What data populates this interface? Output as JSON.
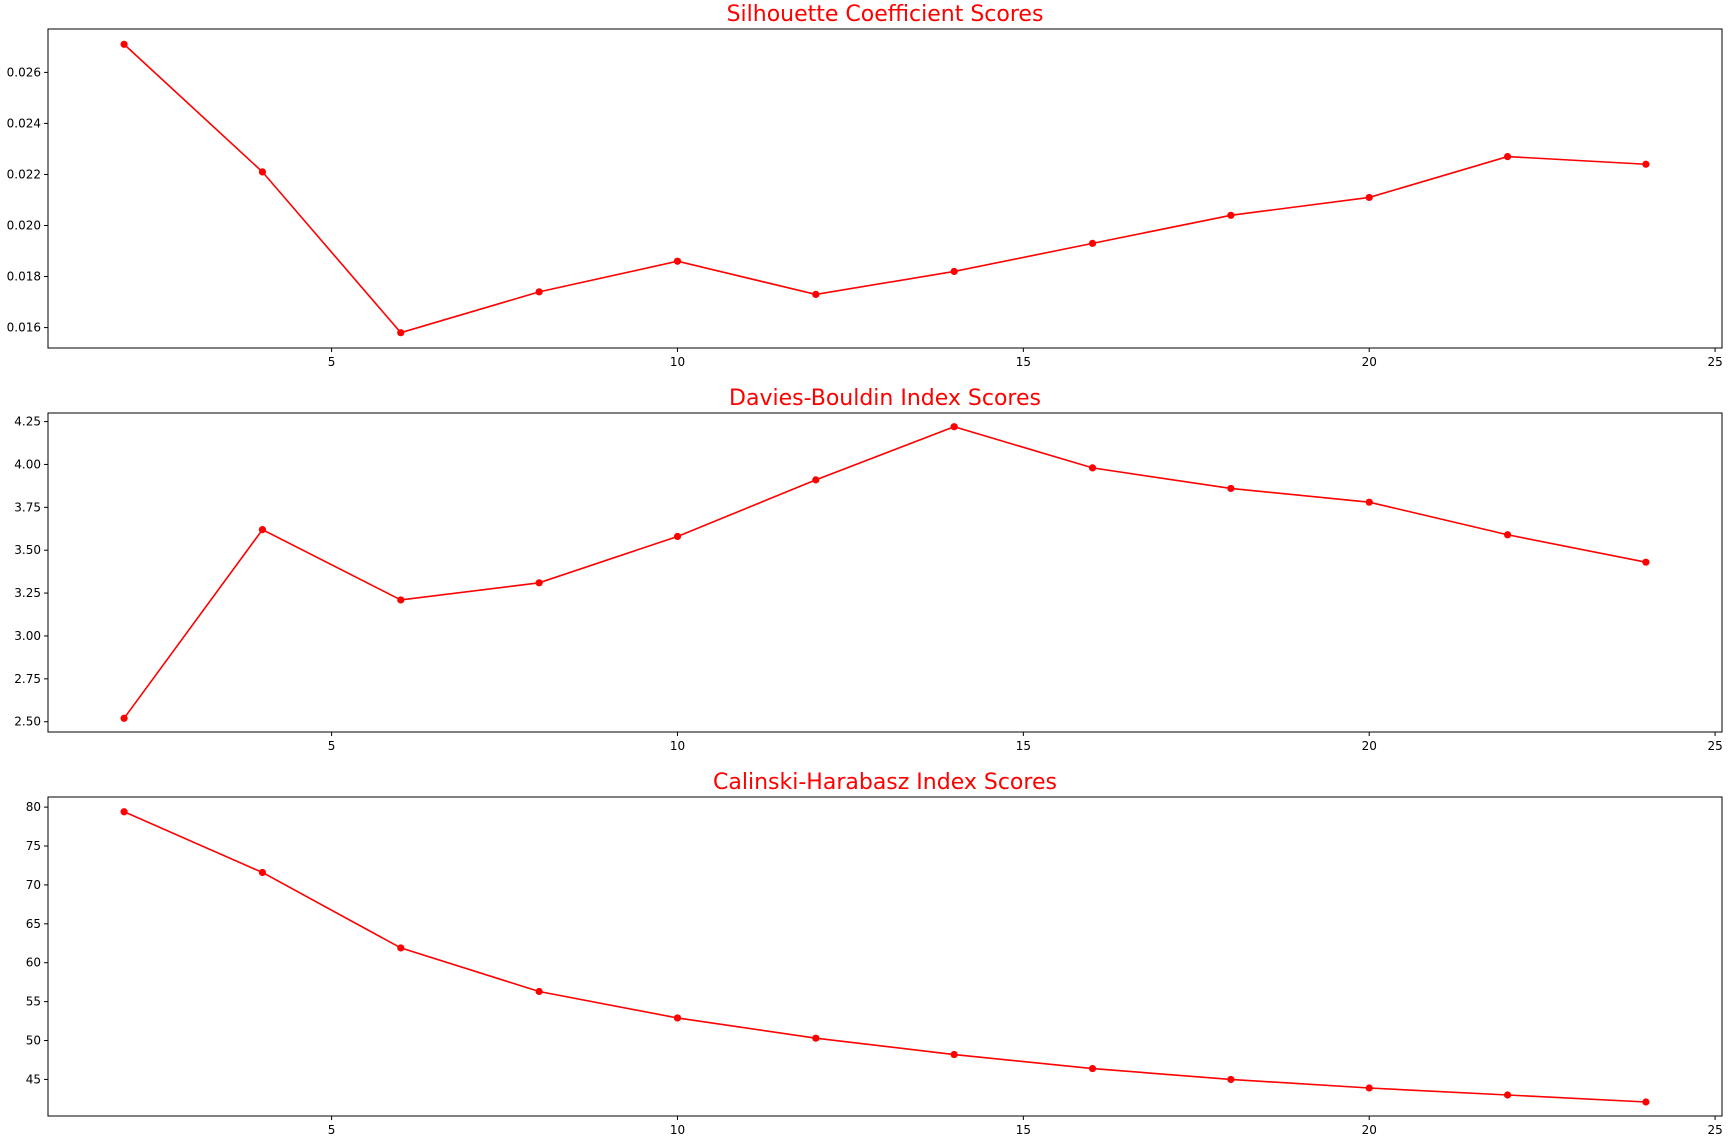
{
  "colors": {
    "series": "#ff0000",
    "title": "#ff0000",
    "axis": "#000000"
  },
  "chart_data": [
    {
      "type": "line",
      "title": "Silhouette Coefficient Scores",
      "xlabel": "",
      "ylabel": "",
      "x": [
        2,
        4,
        6,
        8,
        10,
        12,
        14,
        16,
        18,
        20,
        22,
        24
      ],
      "values": [
        0.0271,
        0.0221,
        0.0158,
        0.0174,
        0.0186,
        0.0173,
        0.0182,
        0.0193,
        0.0204,
        0.0211,
        0.0227,
        0.0224
      ],
      "xlim": [
        0.9,
        25.1
      ],
      "ylim": [
        0.0152,
        0.0277
      ],
      "xticks": [
        5,
        10,
        15,
        20,
        25
      ],
      "yticks": [
        0.016,
        0.018,
        0.02,
        0.022,
        0.024,
        0.026
      ],
      "ytick_labels": [
        "0.016",
        "0.018",
        "0.020",
        "0.022",
        "0.024",
        "0.026"
      ],
      "xtick_labels": [
        "5",
        "10",
        "15",
        "20",
        "25"
      ],
      "marker": "circle",
      "grid": false
    },
    {
      "type": "line",
      "title": "Davies-Bouldin Index Scores",
      "xlabel": "",
      "ylabel": "",
      "x": [
        2,
        4,
        6,
        8,
        10,
        12,
        14,
        16,
        18,
        20,
        22,
        24
      ],
      "values": [
        2.52,
        3.62,
        3.21,
        3.31,
        3.58,
        3.91,
        4.22,
        3.98,
        3.86,
        3.78,
        3.59,
        3.43
      ],
      "xlim": [
        0.9,
        25.1
      ],
      "ylim": [
        2.44,
        4.3
      ],
      "xticks": [
        5,
        10,
        15,
        20,
        25
      ],
      "yticks": [
        2.5,
        2.75,
        3.0,
        3.25,
        3.5,
        3.75,
        4.0,
        4.25
      ],
      "ytick_labels": [
        "2.50",
        "2.75",
        "3.00",
        "3.25",
        "3.50",
        "3.75",
        "4.00",
        "4.25"
      ],
      "xtick_labels": [
        "5",
        "10",
        "15",
        "20",
        "25"
      ],
      "marker": "circle",
      "grid": false
    },
    {
      "type": "line",
      "title": "Calinski-Harabasz Index Scores",
      "xlabel": "",
      "ylabel": "",
      "x": [
        2,
        4,
        6,
        8,
        10,
        12,
        14,
        16,
        18,
        20,
        22,
        24
      ],
      "values": [
        79.4,
        71.6,
        61.9,
        56.3,
        52.9,
        50.3,
        48.2,
        46.4,
        45.0,
        43.9,
        43.0,
        42.1
      ],
      "xlim": [
        0.9,
        25.1
      ],
      "ylim": [
        40.3,
        81.3
      ],
      "xticks": [
        5,
        10,
        15,
        20,
        25
      ],
      "yticks": [
        45,
        50,
        55,
        60,
        65,
        70,
        75,
        80
      ],
      "ytick_labels": [
        "45",
        "50",
        "55",
        "60",
        "65",
        "70",
        "75",
        "80"
      ],
      "xtick_labels": [
        "5",
        "10",
        "15",
        "20",
        "25"
      ],
      "marker": "circle",
      "grid": false
    }
  ]
}
